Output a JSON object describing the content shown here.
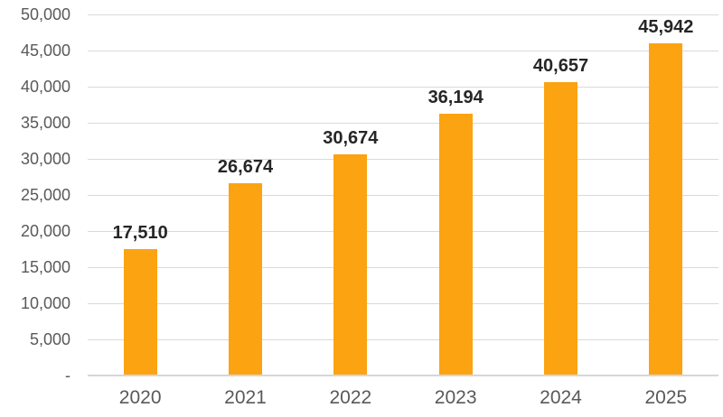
{
  "chart_data": {
    "type": "bar",
    "categories": [
      "2020",
      "2021",
      "2022",
      "2023",
      "2024",
      "2025"
    ],
    "values": [
      17510,
      26674,
      30674,
      36194,
      40657,
      45942
    ],
    "data_labels": [
      "17,510",
      "26,674",
      "30,674",
      "36,194",
      "40,657",
      "45,942"
    ],
    "title": "",
    "xlabel": "",
    "ylabel": "",
    "ylim": [
      0,
      50000
    ],
    "ytick_step": 5000,
    "ytick_labels": [
      "-",
      "5,000",
      "10,000",
      "15,000",
      "20,000",
      "25,000",
      "30,000",
      "35,000",
      "40,000",
      "45,000",
      "50,000"
    ],
    "grid": true,
    "legend": false,
    "colors": {
      "bar": "#FCA311",
      "gridline": "#D9D9D9",
      "axis_line": "#D6D6D6",
      "tick_label": "#595959",
      "data_label": "#262626",
      "background": "#FFFFFF"
    }
  }
}
